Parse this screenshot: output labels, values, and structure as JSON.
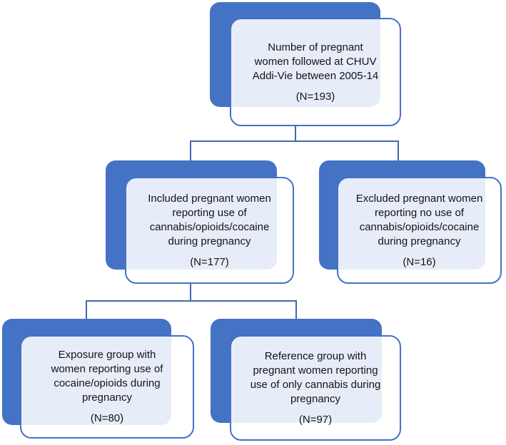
{
  "colors": {
    "accent": "#4472c4",
    "connector": "#4068b0",
    "ink": "#141414",
    "bg": "#ffffff"
  },
  "nodes": [
    {
      "id": "total",
      "label": "Number of pregnant\nwomen followed at CHUV\nAddi-Vie between 2005-14",
      "n": "(N=193)"
    },
    {
      "id": "included",
      "label": "Included pregnant women\nreporting use of\ncannabis/opioids/cocaine\nduring pregnancy",
      "n": "(N=177)"
    },
    {
      "id": "excluded",
      "label": "Excluded pregnant women\nreporting no use of\ncannabis/opioids/cocaine\nduring pregnancy",
      "n": "(N=16)"
    },
    {
      "id": "exposure",
      "label": "Exposure group with\nwomen reporting use of\ncocaine/opioids during\npregnancy",
      "n": "(N=80)"
    },
    {
      "id": "reference",
      "label": "Reference group with\npregnant women reporting\nuse of only cannabis during\npregnancy",
      "n": "(N=97)"
    }
  ],
  "edges": [
    {
      "from": "total",
      "to": "included"
    },
    {
      "from": "total",
      "to": "excluded"
    },
    {
      "from": "included",
      "to": "exposure"
    },
    {
      "from": "included",
      "to": "reference"
    }
  ]
}
